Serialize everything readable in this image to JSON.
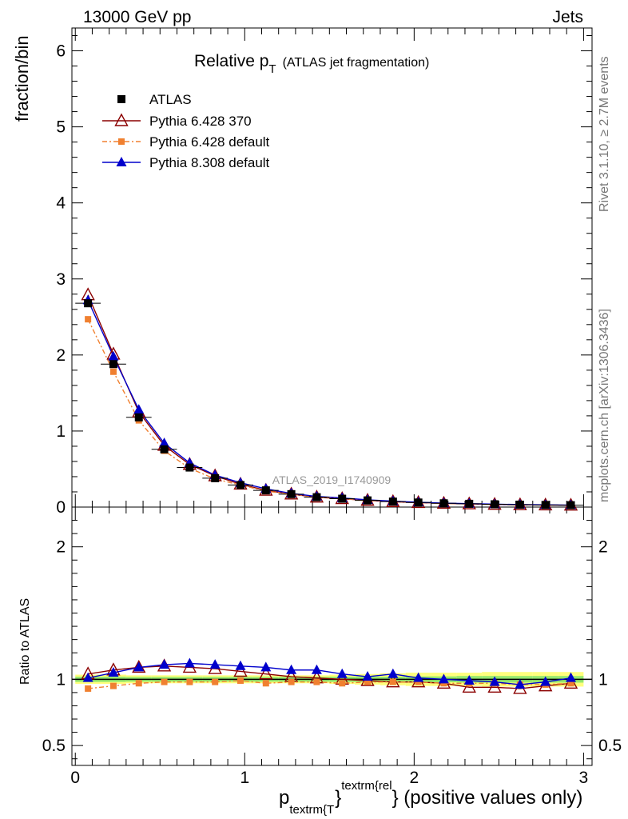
{
  "header": {
    "left": "13000 GeV pp",
    "right": "Jets"
  },
  "side_labels": {
    "top": "Rivet 3.1.10, ≥ 2.7M events",
    "bottom": "mcplots.cern.ch [arXiv:1306.3436]"
  },
  "chart_data": {
    "type": "line",
    "title": "Relative p_T (ATLAS jet fragmentation)",
    "title_main": "Relative p",
    "title_sub": "T",
    "title_rest": "(ATLAS jet fragmentation)",
    "watermark": "ATLAS_2019_I1740909",
    "ylabel": "fraction/bin",
    "ratio_ylabel": "Ratio to ATLAS",
    "xlabel_p": "p",
    "xlabel_sub": "textrm{T",
    "xlabel_sup": "textrm{rel",
    "xlabel_rest": "} (positive values only)",
    "xlim": [
      -0.02,
      3.05
    ],
    "ylim": [
      0,
      6.3
    ],
    "ratio_ylim": [
      0.35,
      2.3
    ],
    "x_ticks": [
      "0",
      "1",
      "2",
      "3"
    ],
    "y_ticks": [
      "0",
      "1",
      "2",
      "3",
      "4",
      "5",
      "6"
    ],
    "ratio_ticks": [
      "0.5",
      "1",
      "2"
    ],
    "ratio_tick_values": [
      0.5,
      1,
      2
    ],
    "legend_position": "top-left",
    "x": [
      0.075,
      0.225,
      0.375,
      0.525,
      0.675,
      0.825,
      0.975,
      1.125,
      1.275,
      1.425,
      1.575,
      1.725,
      1.875,
      2.025,
      2.175,
      2.325,
      2.475,
      2.625,
      2.775,
      2.925
    ],
    "series": [
      {
        "name": "ATLAS",
        "color": "#000000",
        "marker": "square",
        "values": [
          2.68,
          1.88,
          1.18,
          0.76,
          0.52,
          0.38,
          0.29,
          0.22,
          0.17,
          0.13,
          0.11,
          0.088,
          0.072,
          0.06,
          0.05,
          0.043,
          0.037,
          0.032,
          0.028,
          0.025
        ]
      },
      {
        "name": "Pythia 6.428 370",
        "color": "#8b0000",
        "marker": "triangle-open",
        "values": [
          2.79,
          2.01,
          1.25,
          0.81,
          0.56,
          0.41,
          0.3,
          0.22,
          0.17,
          0.13,
          0.11,
          0.088,
          0.071,
          0.059,
          0.049,
          0.041,
          0.035,
          0.03,
          0.027,
          0.024
        ],
        "ratio": [
          1.04,
          1.07,
          1.09,
          1.1,
          1.09,
          1.08,
          1.06,
          1.04,
          1.02,
          1.01,
          1.0,
          0.99,
          0.98,
          0.98,
          0.97,
          0.94,
          0.94,
          0.93,
          0.95,
          0.97
        ]
      },
      {
        "name": "Pythia 6.428 default",
        "color": "#f08030",
        "marker": "square-small",
        "values": [
          2.47,
          1.78,
          1.14,
          0.74,
          0.51,
          0.37,
          0.29,
          0.21,
          0.17,
          0.13,
          0.11,
          0.087,
          0.071,
          0.059,
          0.049,
          0.042,
          0.036,
          0.031,
          0.027,
          0.024
        ],
        "ratio": [
          0.93,
          0.95,
          0.97,
          0.98,
          0.98,
          0.98,
          0.99,
          0.97,
          0.98,
          0.98,
          0.97,
          0.98,
          0.98,
          0.98,
          0.97,
          0.97,
          0.97,
          0.96,
          0.96,
          0.97
        ]
      },
      {
        "name": "Pythia 8.308 default",
        "color": "#0000cc",
        "marker": "triangle",
        "values": [
          2.72,
          1.98,
          1.28,
          0.84,
          0.58,
          0.42,
          0.32,
          0.24,
          0.18,
          0.14,
          0.12,
          0.095,
          0.078,
          0.063,
          0.052,
          0.045,
          0.038,
          0.033,
          0.029,
          0.026
        ],
        "ratio": [
          1.01,
          1.05,
          1.09,
          1.11,
          1.12,
          1.11,
          1.1,
          1.09,
          1.07,
          1.07,
          1.04,
          1.02,
          1.04,
          1.01,
          1.0,
          0.99,
          0.98,
          0.96,
          0.98,
          1.01
        ]
      }
    ]
  }
}
